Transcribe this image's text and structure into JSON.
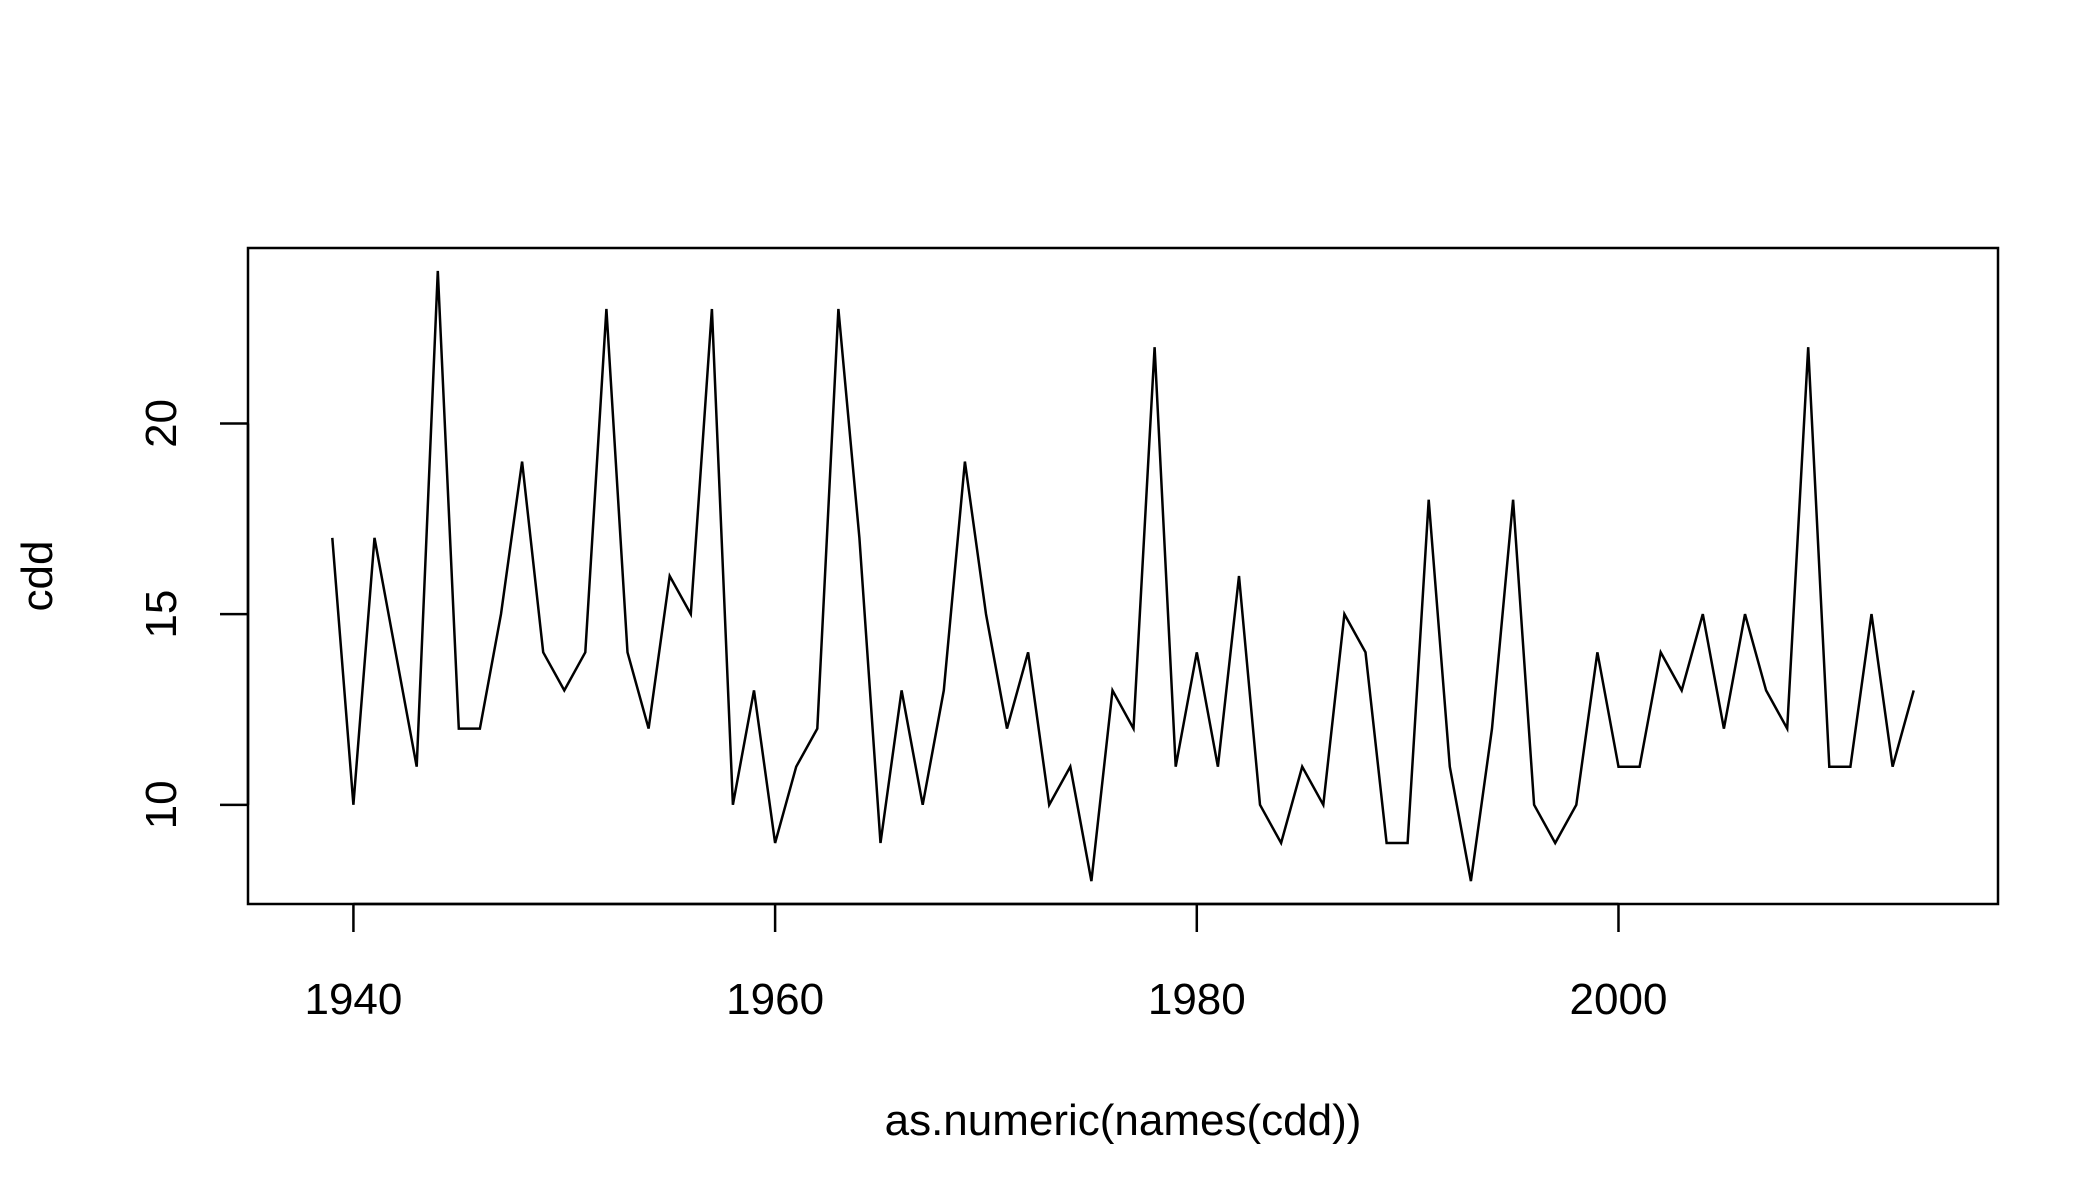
{
  "chart_data": {
    "type": "line",
    "title": "",
    "xlabel": "as.numeric(names(cdd))",
    "ylabel": "cdd",
    "xlim": [
      1935.0,
      2018.0
    ],
    "ylim": [
      7.4,
      24.6
    ],
    "x_ticks": [
      1940,
      1960,
      1980,
      2000
    ],
    "y_ticks": [
      10,
      15,
      20
    ],
    "grid": false,
    "legend": "none",
    "line_color": "#000000",
    "x": [
      1939,
      1940,
      1941,
      1942,
      1943,
      1944,
      1945,
      1946,
      1947,
      1948,
      1949,
      1950,
      1951,
      1952,
      1953,
      1954,
      1955,
      1956,
      1957,
      1958,
      1959,
      1960,
      1961,
      1962,
      1963,
      1964,
      1965,
      1966,
      1967,
      1968,
      1969,
      1970,
      1971,
      1972,
      1973,
      1974,
      1975,
      1976,
      1977,
      1978,
      1979,
      1980,
      1981,
      1982,
      1983,
      1984,
      1985,
      1986,
      1987,
      1988,
      1989,
      1990,
      1991,
      1992,
      1993,
      1994,
      1995,
      1996,
      1997,
      1998,
      1999,
      2000,
      2001,
      2002,
      2003,
      2004,
      2005,
      2006,
      2007,
      2008,
      2009,
      2010,
      2011,
      2012,
      2013,
      2014
    ],
    "series": [
      {
        "values": [
          17,
          10,
          17,
          14,
          11,
          24,
          12,
          12,
          15,
          19,
          14,
          13,
          14,
          23,
          14,
          12,
          16,
          15,
          23,
          10,
          13,
          9,
          11,
          12,
          23,
          17,
          9,
          13,
          10,
          13,
          19,
          15,
          12,
          14,
          10,
          11,
          8,
          13,
          12,
          22,
          11,
          14,
          11,
          16,
          10,
          9,
          11,
          10,
          15,
          14,
          9,
          9,
          18,
          11,
          8,
          12,
          18,
          10,
          9,
          10,
          14,
          11,
          11,
          14,
          13,
          15,
          12,
          15,
          13,
          12,
          22,
          11,
          11,
          15,
          11,
          13
        ]
      }
    ]
  }
}
